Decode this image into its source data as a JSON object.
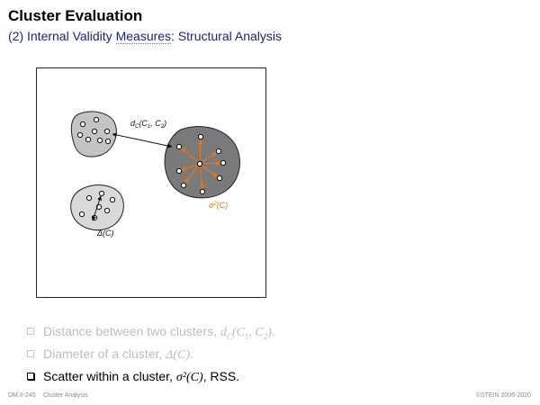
{
  "slide": {
    "title": "Cluster Evaluation",
    "subtitle_prefix": "(2) Internal Validity ",
    "subtitle_link": "Measures",
    "subtitle_suffix": ": Structural Analysis"
  },
  "figure": {
    "label_distance": "d_C(C_1, C_2)",
    "label_scatter": "σ²(C)",
    "label_diameter": "Δ(C)",
    "colors": {
      "cluster_top_left": "#c4c4c4",
      "cluster_right": "#7a7a7a",
      "cluster_bottom_left": "#d9d9d9",
      "scatter_arrows": "#e8731a",
      "outline": "#222222"
    }
  },
  "bullets": [
    {
      "text": "Distance between two clusters, ",
      "math": "d_C(C_1, C_2)",
      "tail": ".",
      "state": "faded"
    },
    {
      "text": "Diameter of a cluster, ",
      "math": "Δ(C)",
      "tail": ".",
      "state": "faded"
    },
    {
      "text": "Scatter within a cluster, ",
      "math": "σ²(C)",
      "tail": ", RSS.",
      "state": "active"
    }
  ],
  "footer": {
    "page": "DM:II-245",
    "section": "Cluster Analysis",
    "copyright": "©STEIN 2006-2020"
  }
}
